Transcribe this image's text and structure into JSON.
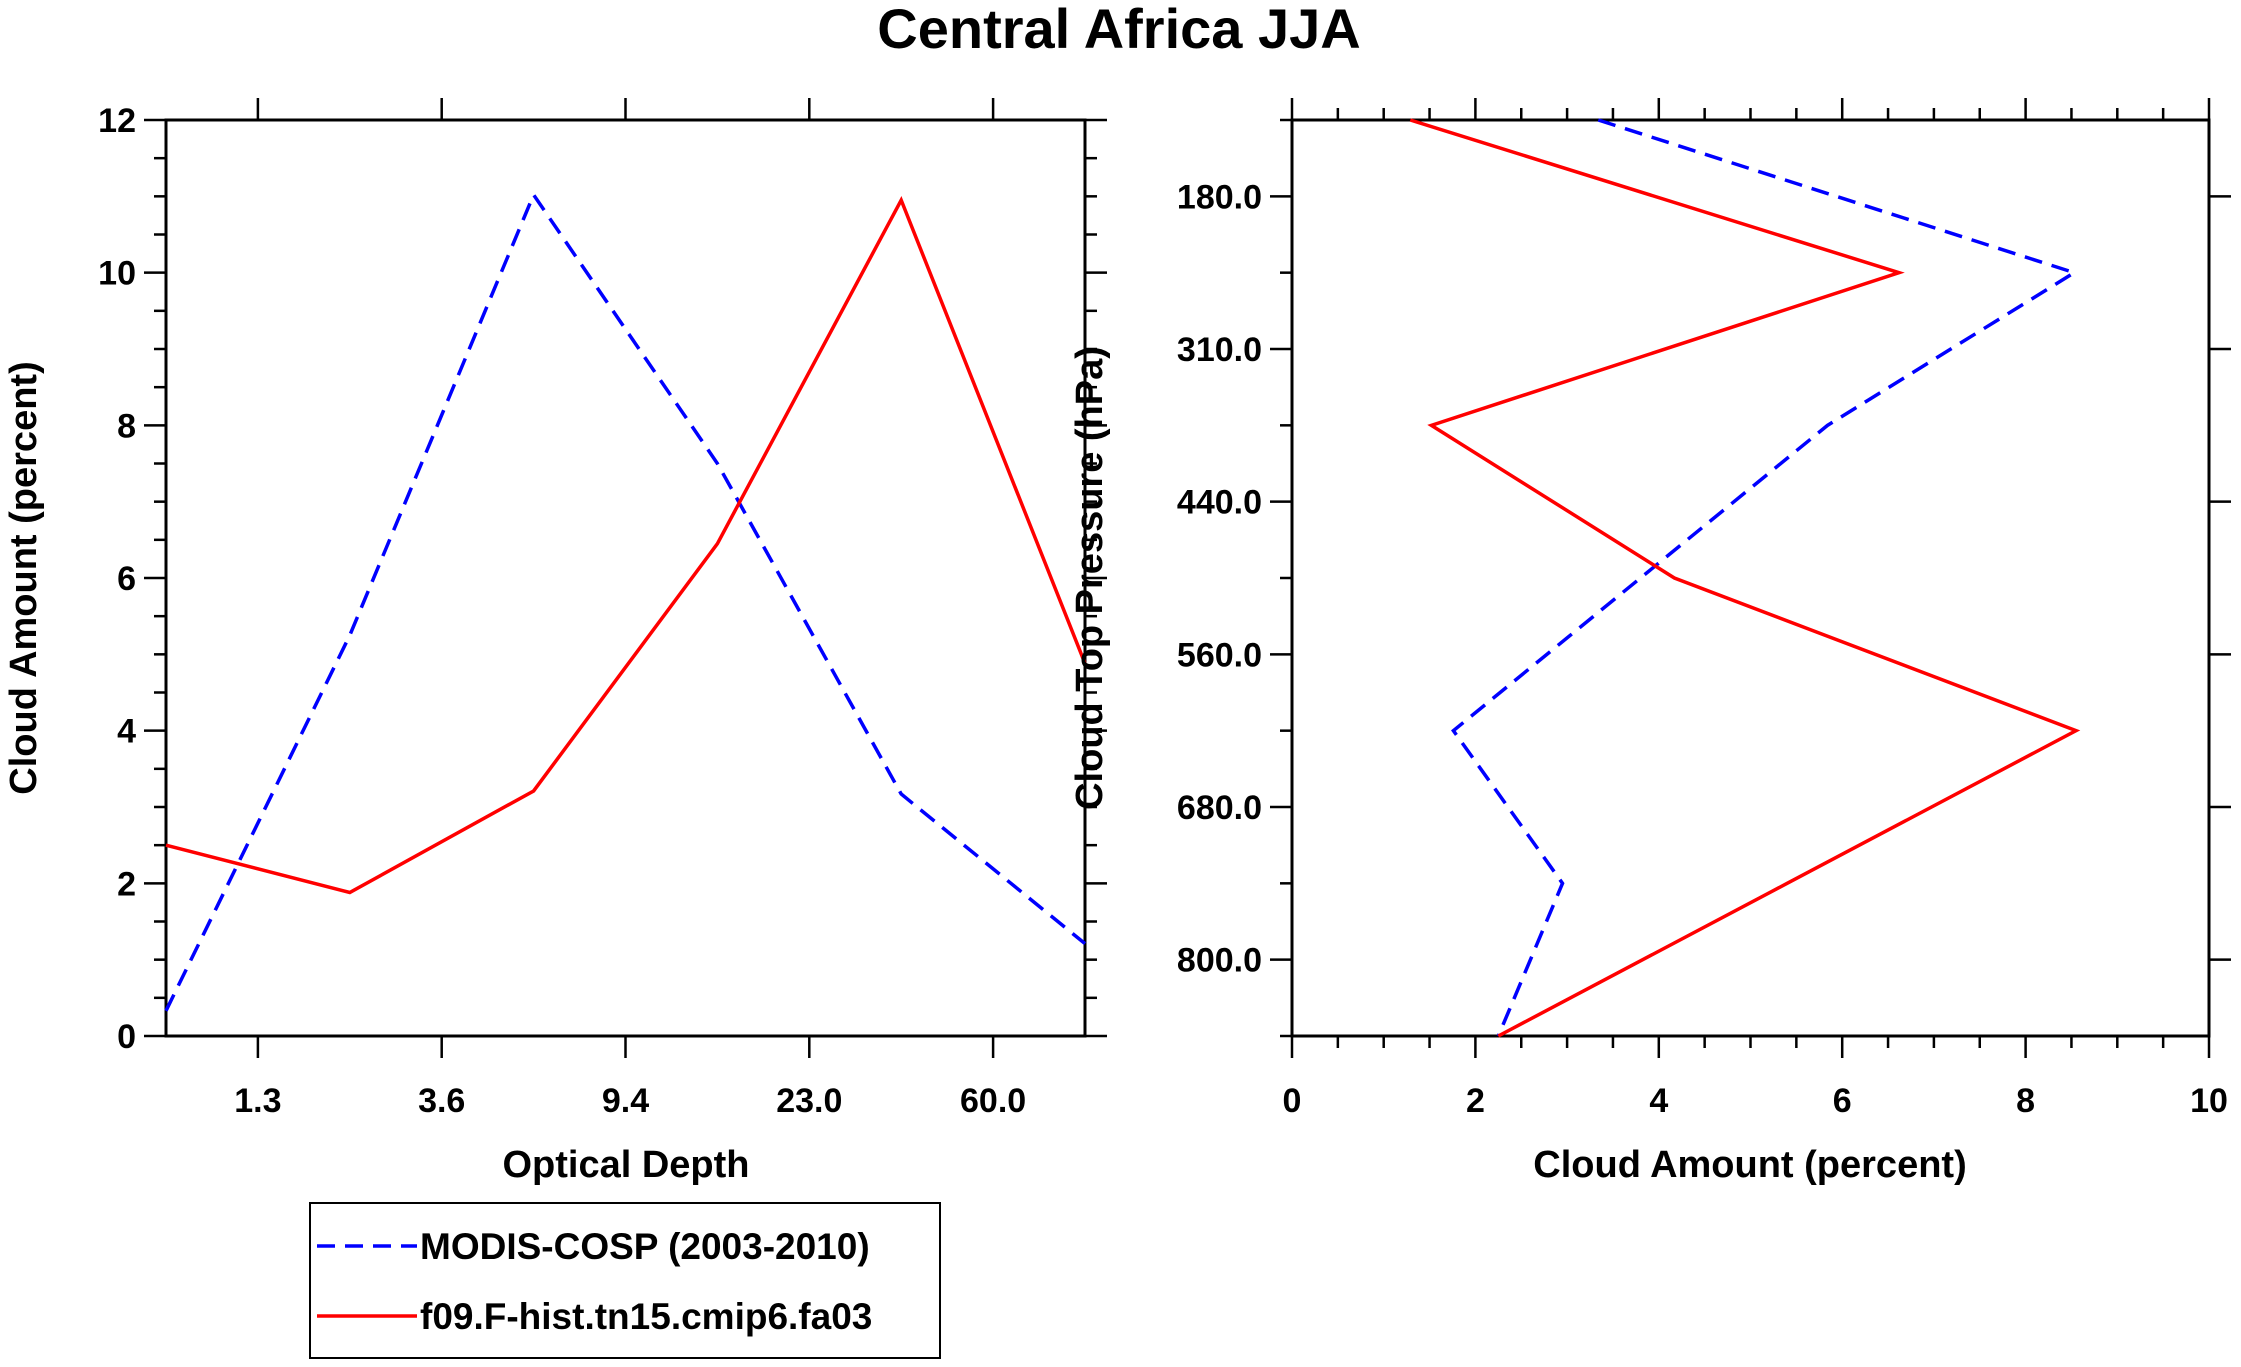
{
  "chart_data": [
    {
      "type": "line",
      "title": "Central Africa JJA",
      "xlabel": "Optical Depth",
      "ylabel": "Cloud Amount (percent)",
      "x_bins": [
        0,
        1,
        2,
        3,
        4,
        5
      ],
      "x_tick_labels": [
        "1.3",
        "3.6",
        "9.4",
        "23.0",
        "60.0"
      ],
      "y_ticks": [
        "0",
        "2",
        "4",
        "6",
        "8",
        "10",
        "12"
      ],
      "ylim": [
        0,
        12
      ],
      "series": [
        {
          "name": "MODIS-COSP (2003-2010)",
          "color": "#0000ff",
          "dash": "dashed",
          "values": [
            0.33,
            5.25,
            11.02,
            7.5,
            3.17,
            1.21
          ]
        },
        {
          "name": "f09.F-hist.tn15.cmip6.fa03",
          "color": "#ff0000",
          "dash": "solid",
          "values": [
            2.5,
            1.88,
            3.21,
            6.45,
            10.95,
            4.88
          ]
        }
      ]
    },
    {
      "type": "line",
      "xlabel": "Cloud Amount (percent)",
      "ylabel": "Cloud Top Pressure (hPa)",
      "xlim": [
        0,
        10
      ],
      "x_ticks": [
        "0",
        "2",
        "4",
        "6",
        "8",
        "10"
      ],
      "y_bins": [
        0,
        1,
        2,
        3,
        4,
        5,
        6
      ],
      "y_tick_labels": [
        "180.0",
        "310.0",
        "440.0",
        "560.0",
        "680.0",
        "800.0"
      ],
      "series": [
        {
          "name": "MODIS-COSP (2003-2010)",
          "color": "#0000ff",
          "dash": "dashed",
          "values": [
            3.34,
            8.53,
            5.84,
            3.8,
            1.76,
            2.95,
            2.25
          ]
        },
        {
          "name": "f09.F-hist.tn15.cmip6.fa03",
          "color": "#ff0000",
          "dash": "solid",
          "values": [
            1.29,
            6.62,
            1.52,
            4.17,
            8.55,
            5.4,
            2.25
          ]
        }
      ]
    }
  ],
  "legend": [
    "MODIS-COSP (2003-2010)",
    "f09.F-hist.tn15.cmip6.fa03"
  ]
}
